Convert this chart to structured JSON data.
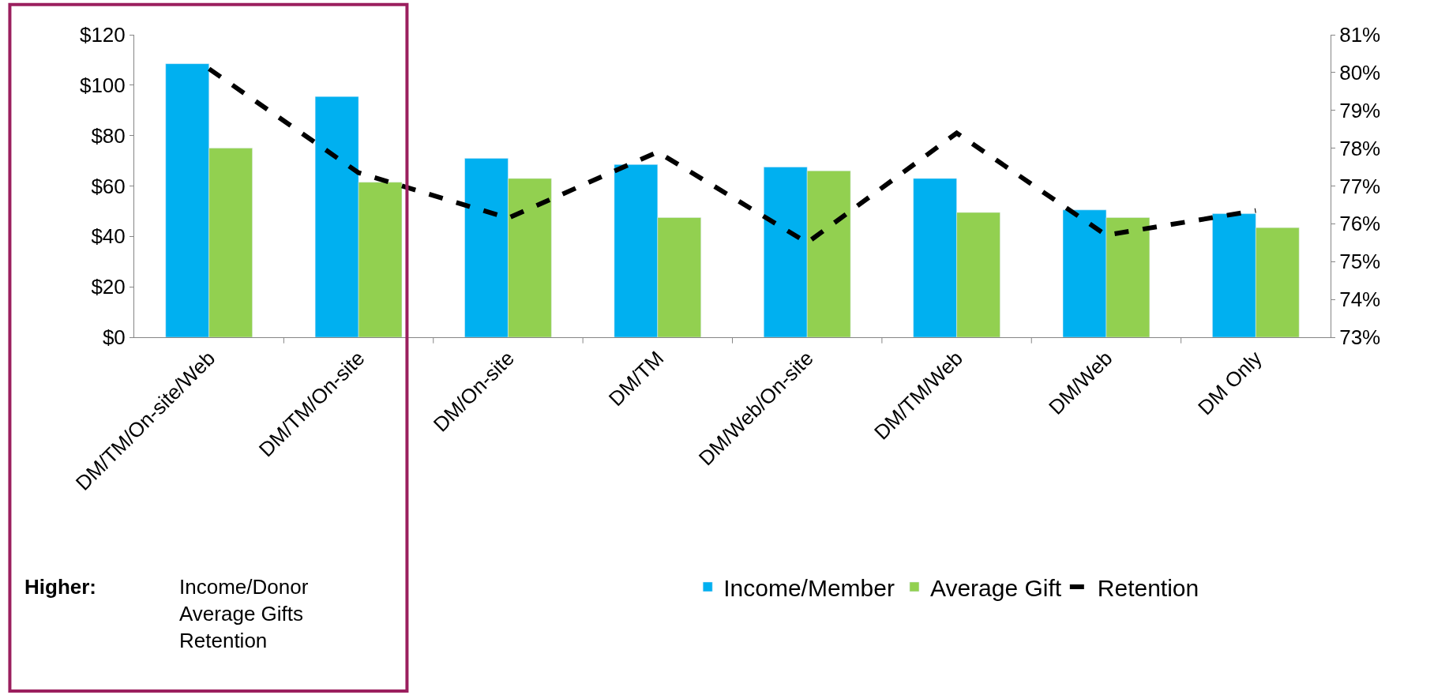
{
  "chart_data": {
    "type": "bar",
    "categories": [
      "DM/TM/On-site/Web",
      "DM/TM/On-site",
      "DM/On-site",
      "DM/TM",
      "DM/Web/On-site",
      "DM/TM/Web",
      "DM/Web",
      "DM Only"
    ],
    "series": [
      {
        "name": "Income/Member",
        "color": "#00b0f0",
        "values": [
          108.5,
          95.5,
          71,
          68.5,
          67.5,
          63,
          50.5,
          49
        ]
      },
      {
        "name": "Average Gift",
        "color": "#92d050",
        "values": [
          75,
          61.5,
          63,
          47.5,
          66,
          49.5,
          47.5,
          43.5
        ]
      },
      {
        "name": "Retention",
        "type": "line",
        "axis": "y2",
        "color": "#000000",
        "line_style": "dashed",
        "values": [
          80.1,
          77.35,
          76.15,
          77.9,
          75.5,
          78.4,
          75.7,
          76.35
        ]
      }
    ],
    "ylim": [
      0,
      120
    ],
    "yticks": [
      {
        "value": 0,
        "label": "$0"
      },
      {
        "value": 20,
        "label": "$20"
      },
      {
        "value": 40,
        "label": "$40"
      },
      {
        "value": 60,
        "label": "$60"
      },
      {
        "value": 80,
        "label": "$80"
      },
      {
        "value": 100,
        "label": "$100"
      },
      {
        "value": 120,
        "label": "$120"
      }
    ],
    "y2lim": [
      73,
      81
    ],
    "y2ticks": [
      {
        "value": 73,
        "label": "73%"
      },
      {
        "value": 74,
        "label": "74%"
      },
      {
        "value": 75,
        "label": "75%"
      },
      {
        "value": 76,
        "label": "76%"
      },
      {
        "value": 77,
        "label": "77%"
      },
      {
        "value": 78,
        "label": "78%"
      },
      {
        "value": 79,
        "label": "79%"
      },
      {
        "value": 80,
        "label": "80%"
      },
      {
        "value": 81,
        "label": "81%"
      }
    ],
    "annotations": [
      "Higher:",
      "Income/Donor\nAverage Gifts\nRetention"
    ],
    "legend": "bottom",
    "marker": "none"
  }
}
